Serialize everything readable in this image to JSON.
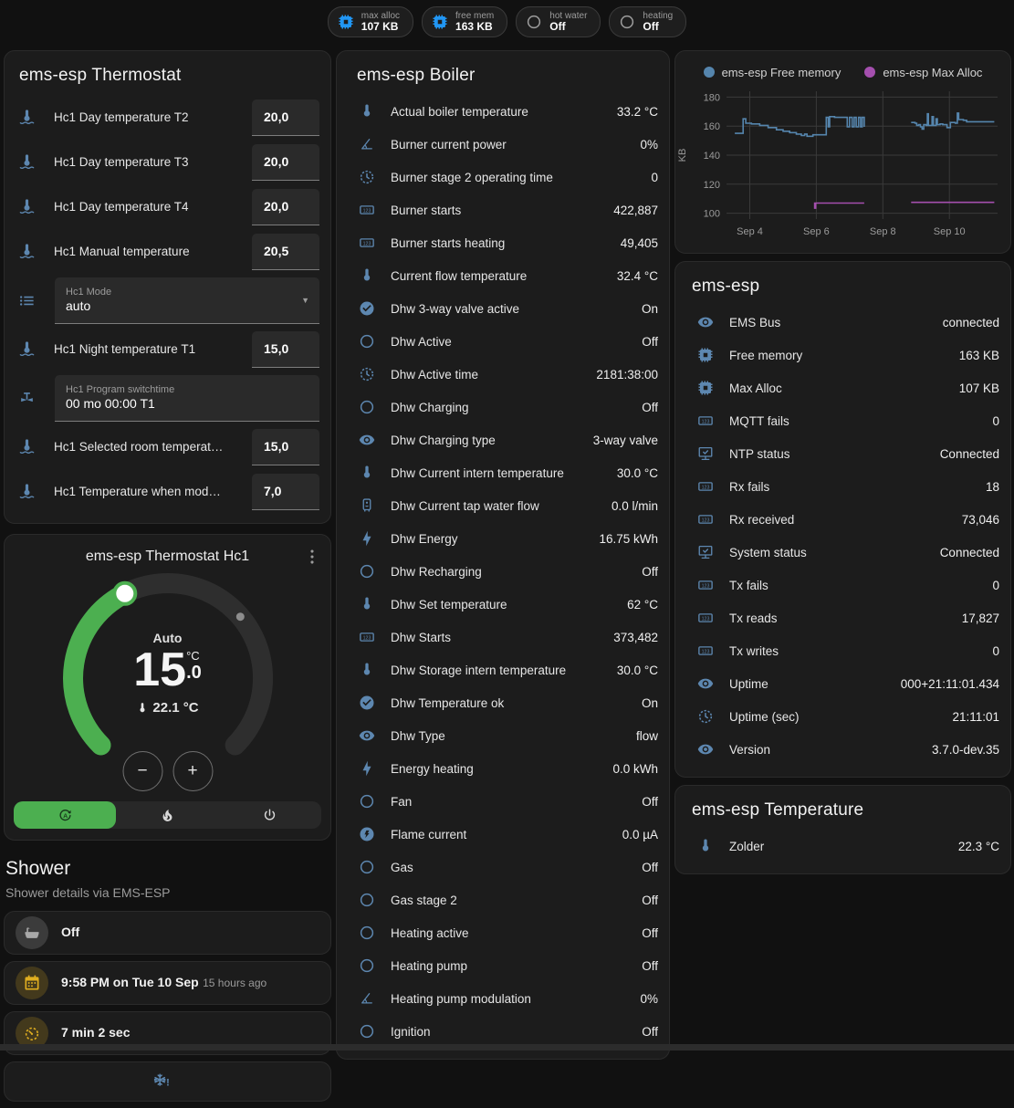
{
  "topbar": {
    "badges": [
      {
        "icon": "chip-icon",
        "icon_color": "#2196f3",
        "label": "max alloc",
        "value": "107 KB"
      },
      {
        "icon": "chip-icon",
        "icon_color": "#2196f3",
        "label": "free mem",
        "value": "163 KB"
      },
      {
        "icon": "circle-icon",
        "icon_color": "#9e9e9e",
        "label": "hot water",
        "value": "Off"
      },
      {
        "icon": "circle-icon",
        "icon_color": "#9e9e9e",
        "label": "heating",
        "value": "Off"
      }
    ]
  },
  "thermostat_card": {
    "title": "ems-esp Thermostat",
    "rows": [
      {
        "type": "number",
        "icon": "water-thermometer-icon",
        "label": "Hc1 Day temperature T2",
        "value": "20,0"
      },
      {
        "type": "number",
        "icon": "water-thermometer-icon",
        "label": "Hc1 Day temperature T3",
        "value": "20,0"
      },
      {
        "type": "number",
        "icon": "water-thermometer-icon",
        "label": "Hc1 Day temperature T4",
        "value": "20,0"
      },
      {
        "type": "number",
        "icon": "water-thermometer-icon",
        "label": "Hc1 Manual temperature",
        "value": "20,5"
      },
      {
        "type": "select",
        "icon": "list-icon",
        "label": "Hc1 Mode",
        "value": "auto"
      },
      {
        "type": "number",
        "icon": "water-thermometer-icon",
        "label": "Hc1 Night temperature T1",
        "value": "15,0"
      },
      {
        "type": "text",
        "icon": "pipe-valve-icon",
        "label": "Hc1 Program switchtime",
        "value": "00 mo 00:00 T1"
      },
      {
        "type": "number",
        "icon": "water-thermometer-icon",
        "label": "Hc1 Selected room temperat…",
        "value": "15,0"
      },
      {
        "type": "number",
        "icon": "water-thermometer-icon",
        "label": "Hc1 Temperature when mod…",
        "value": "7,0"
      }
    ]
  },
  "dial": {
    "title": "ems-esp Thermostat Hc1",
    "menu_icon": "dots-vertical-icon",
    "mode_label": "Auto",
    "target_int": "15",
    "target_frac": ".0",
    "unit": "°C",
    "current_display": "22.1 °C",
    "min": 5,
    "max": 30,
    "target": 15.0,
    "current": 22.1,
    "accent_color": "#4caf50",
    "track_color": "#2e2e2e",
    "minus_label": "−",
    "plus_label": "+",
    "modes": [
      {
        "icon": "auto-mode-icon",
        "active": true
      },
      {
        "icon": "fire-icon",
        "active": false
      },
      {
        "icon": "power-icon",
        "active": false
      }
    ]
  },
  "shower": {
    "title": "Shower",
    "subtitle": "Shower details via EMS-ESP",
    "cards": [
      {
        "icon": "bathtub-icon",
        "icon_color": "#a8a8a8",
        "icon_bg": "#3b3b3b",
        "primary": "Off"
      },
      {
        "icon": "calendar-icon",
        "icon_color": "#e0ae20",
        "icon_bg": "rgba(224,174,32,0.2)",
        "primary": "9:58 PM on Tue 10 Sep",
        "secondary": "15 hours ago"
      },
      {
        "icon": "timer-icon",
        "icon_color": "#e0ae20",
        "icon_bg": "rgba(224,174,32,0.2)",
        "primary": "7 min 2 sec"
      },
      {
        "icon": "snowflake-alert-icon",
        "icon_color": "#5d87b0",
        "variant": "center"
      }
    ]
  },
  "boiler_card": {
    "title": "ems-esp Boiler",
    "rows": [
      {
        "icon": "thermometer-icon",
        "label": "Actual boiler temperature",
        "value": "33.2 °C"
      },
      {
        "icon": "angle-icon",
        "label": "Burner current power",
        "value": "0%"
      },
      {
        "icon": "clock-icon",
        "label": "Burner stage 2 operating time",
        "value": "0"
      },
      {
        "icon": "counter-icon",
        "label": "Burner starts",
        "value": "422,887"
      },
      {
        "icon": "counter-icon",
        "label": "Burner starts heating",
        "value": "49,405"
      },
      {
        "icon": "thermometer-icon",
        "label": "Current flow temperature",
        "value": "32.4 °C"
      },
      {
        "icon": "check-circle-icon",
        "label": "Dhw 3-way valve active",
        "value": "On"
      },
      {
        "icon": "circle-icon",
        "label": "Dhw Active",
        "value": "Off"
      },
      {
        "icon": "clock-icon",
        "label": "Dhw Active time",
        "value": "2181:38:00"
      },
      {
        "icon": "circle-icon",
        "label": "Dhw Charging",
        "value": "Off"
      },
      {
        "icon": "eye-icon",
        "label": "Dhw Charging type",
        "value": "3-way valve"
      },
      {
        "icon": "thermometer-icon",
        "label": "Dhw Current intern temperature",
        "value": "30.0 °C"
      },
      {
        "icon": "water-heater-icon",
        "label": "Dhw Current tap water flow",
        "value": "0.0 l/min"
      },
      {
        "icon": "bolt-icon",
        "label": "Dhw Energy",
        "value": "16.75 kWh"
      },
      {
        "icon": "circle-icon",
        "label": "Dhw Recharging",
        "value": "Off"
      },
      {
        "icon": "thermometer-icon",
        "label": "Dhw Set temperature",
        "value": "62 °C"
      },
      {
        "icon": "counter-icon",
        "label": "Dhw Starts",
        "value": "373,482"
      },
      {
        "icon": "thermometer-icon",
        "label": "Dhw Storage intern temperature",
        "value": "30.0 °C"
      },
      {
        "icon": "check-circle-icon",
        "label": "Dhw Temperature ok",
        "value": "On"
      },
      {
        "icon": "eye-icon",
        "label": "Dhw Type",
        "value": "flow"
      },
      {
        "icon": "bolt-icon",
        "label": "Energy heating",
        "value": "0.0 kWh"
      },
      {
        "icon": "circle-icon",
        "label": "Fan",
        "value": "Off"
      },
      {
        "icon": "flash-circle-icon",
        "label": "Flame current",
        "value": "0.0 µA"
      },
      {
        "icon": "circle-icon",
        "label": "Gas",
        "value": "Off"
      },
      {
        "icon": "circle-icon",
        "label": "Gas stage 2",
        "value": "Off"
      },
      {
        "icon": "circle-icon",
        "label": "Heating active",
        "value": "Off"
      },
      {
        "icon": "circle-icon",
        "label": "Heating pump",
        "value": "Off"
      },
      {
        "icon": "angle-icon",
        "label": "Heating pump modulation",
        "value": "0%"
      },
      {
        "icon": "circle-icon",
        "label": "Ignition",
        "value": "Off"
      }
    ]
  },
  "chart_data": {
    "type": "line",
    "title": "",
    "xlabel": "",
    "ylabel": "KB",
    "grid": true,
    "legend_position": "top",
    "xlim": [
      3.3,
      11.45
    ],
    "ylim": [
      96,
      184
    ],
    "yticks": [
      100,
      120,
      140,
      160,
      180
    ],
    "xticks": [
      {
        "x": 4,
        "label": "Sep 4"
      },
      {
        "x": 6,
        "label": "Sep 6"
      },
      {
        "x": 8,
        "label": "Sep 8"
      },
      {
        "x": 10,
        "label": "Sep 10"
      }
    ],
    "series": [
      {
        "name": "ems-esp Free memory",
        "color": "#5585ad",
        "segments": [
          [
            [
              3.55,
              155
            ],
            [
              3.78,
              155
            ],
            [
              3.8,
              165
            ],
            [
              3.88,
              162
            ],
            [
              4.05,
              161.5
            ],
            [
              4.3,
              160.5
            ],
            [
              4.55,
              159
            ],
            [
              4.8,
              157.5
            ],
            [
              5.0,
              156.5
            ],
            [
              5.2,
              155.5
            ],
            [
              5.4,
              154.5
            ],
            [
              5.55,
              153.5
            ],
            [
              5.65,
              154.5
            ],
            [
              5.72,
              153
            ],
            [
              5.9,
              154
            ],
            [
              6.22,
              154
            ],
            [
              6.3,
              166
            ],
            [
              6.36,
              159.5
            ],
            [
              6.4,
              166.5
            ],
            [
              6.55,
              166
            ],
            [
              6.88,
              166
            ],
            [
              6.93,
              159.5
            ],
            [
              7.0,
              166
            ],
            [
              7.08,
              159.5
            ],
            [
              7.14,
              166
            ],
            [
              7.2,
              159.5
            ],
            [
              7.27,
              166
            ],
            [
              7.33,
              159.5
            ],
            [
              7.38,
              166
            ],
            [
              7.44,
              159.5
            ]
          ],
          [
            [
              8.85,
              162.5
            ],
            [
              8.97,
              162
            ],
            [
              9.02,
              160.5
            ],
            [
              9.08,
              161
            ],
            [
              9.13,
              159.5
            ],
            [
              9.18,
              158
            ],
            [
              9.23,
              161
            ],
            [
              9.3,
              160.5
            ],
            [
              9.34,
              168.5
            ],
            [
              9.37,
              160.5
            ],
            [
              9.44,
              160.5
            ],
            [
              9.48,
              166.5
            ],
            [
              9.52,
              160.5
            ],
            [
              9.6,
              165
            ],
            [
              9.64,
              161
            ],
            [
              9.72,
              161.5
            ],
            [
              9.8,
              161
            ],
            [
              9.93,
              159
            ],
            [
              10.03,
              162.5
            ],
            [
              10.18,
              162
            ],
            [
              10.24,
              169
            ],
            [
              10.28,
              164.5
            ],
            [
              10.42,
              164
            ],
            [
              10.52,
              163
            ],
            [
              11.35,
              163
            ]
          ]
        ]
      },
      {
        "name": "ems-esp Max Alloc",
        "color": "#a44fae",
        "segments": [
          [
            [
              5.93,
              107
            ],
            [
              5.95,
              103.5
            ],
            [
              5.98,
              107
            ],
            [
              7.44,
              107
            ]
          ],
          [
            [
              8.85,
              107.5
            ],
            [
              11.35,
              107.5
            ]
          ]
        ]
      }
    ]
  },
  "emsesp_card": {
    "title": "ems-esp",
    "rows": [
      {
        "icon": "eye-icon",
        "label": "EMS Bus",
        "value": "connected"
      },
      {
        "icon": "chip-icon",
        "label": "Free memory",
        "value": "163 KB"
      },
      {
        "icon": "chip-icon",
        "label": "Max Alloc",
        "value": "107 KB"
      },
      {
        "icon": "counter-icon",
        "label": "MQTT fails",
        "value": "0"
      },
      {
        "icon": "monitor-check-icon",
        "label": "NTP status",
        "value": "Connected"
      },
      {
        "icon": "counter-icon",
        "label": "Rx fails",
        "value": "18"
      },
      {
        "icon": "counter-icon",
        "label": "Rx received",
        "value": "73,046"
      },
      {
        "icon": "monitor-check-icon",
        "label": "System status",
        "value": "Connected"
      },
      {
        "icon": "counter-icon",
        "label": "Tx fails",
        "value": "0"
      },
      {
        "icon": "counter-icon",
        "label": "Tx reads",
        "value": "17,827"
      },
      {
        "icon": "counter-icon",
        "label": "Tx writes",
        "value": "0"
      },
      {
        "icon": "eye-icon",
        "label": "Uptime",
        "value": "000+21:11:01.434"
      },
      {
        "icon": "clock-icon",
        "label": "Uptime (sec)",
        "value": "21:11:01"
      },
      {
        "icon": "eye-icon",
        "label": "Version",
        "value": "3.7.0-dev.35"
      }
    ]
  },
  "temperature_card": {
    "title": "ems-esp Temperature",
    "rows": [
      {
        "icon": "thermometer-icon",
        "label": "Zolder",
        "value": "22.3 °C"
      }
    ]
  }
}
